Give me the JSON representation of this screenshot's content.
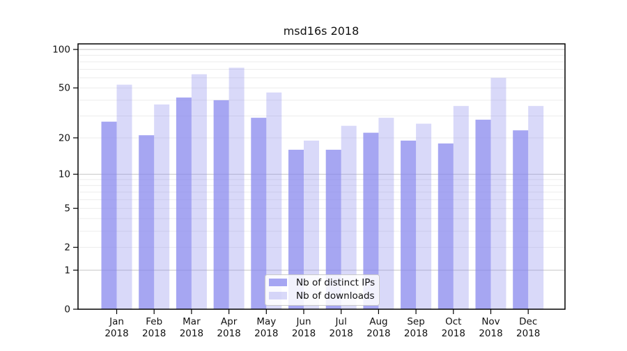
{
  "chart_data": {
    "type": "bar",
    "title": "msd16s 2018",
    "categories": [
      "Jan",
      "Feb",
      "Mar",
      "Apr",
      "May",
      "Jun",
      "Jul",
      "Aug",
      "Sep",
      "Oct",
      "Nov",
      "Dec"
    ],
    "year_label": "2018",
    "series": [
      {
        "name": "Nb of distinct IPs",
        "color": "#8383ED",
        "opacity": 0.72,
        "values": [
          27,
          21,
          42,
          40,
          29,
          16,
          16,
          22,
          19,
          18,
          28,
          23
        ]
      },
      {
        "name": "Nb of downloads",
        "color": "#8383ED",
        "opacity": 0.31,
        "values": [
          53,
          37,
          64,
          72,
          46,
          19,
          25,
          29,
          26,
          36,
          60,
          36
        ]
      }
    ],
    "xlabel": "",
    "ylabel": "",
    "y_scale": "symlog (y = ln(1+v))",
    "y_ticks": [
      0,
      1,
      2,
      5,
      10,
      20,
      50,
      100
    ],
    "y_major_gridlines": [
      1,
      10,
      100
    ],
    "ylim": [
      0,
      110
    ],
    "grid": "on",
    "legend_position": "bottom-center",
    "colors": {
      "bar_base": "#8383ED",
      "grid_minor": "#ececec",
      "grid_major": "#c6c6c6",
      "axis": "#000000",
      "text": "#111111",
      "legend_border": "#c9c9c9",
      "background": "#ffffff"
    }
  }
}
